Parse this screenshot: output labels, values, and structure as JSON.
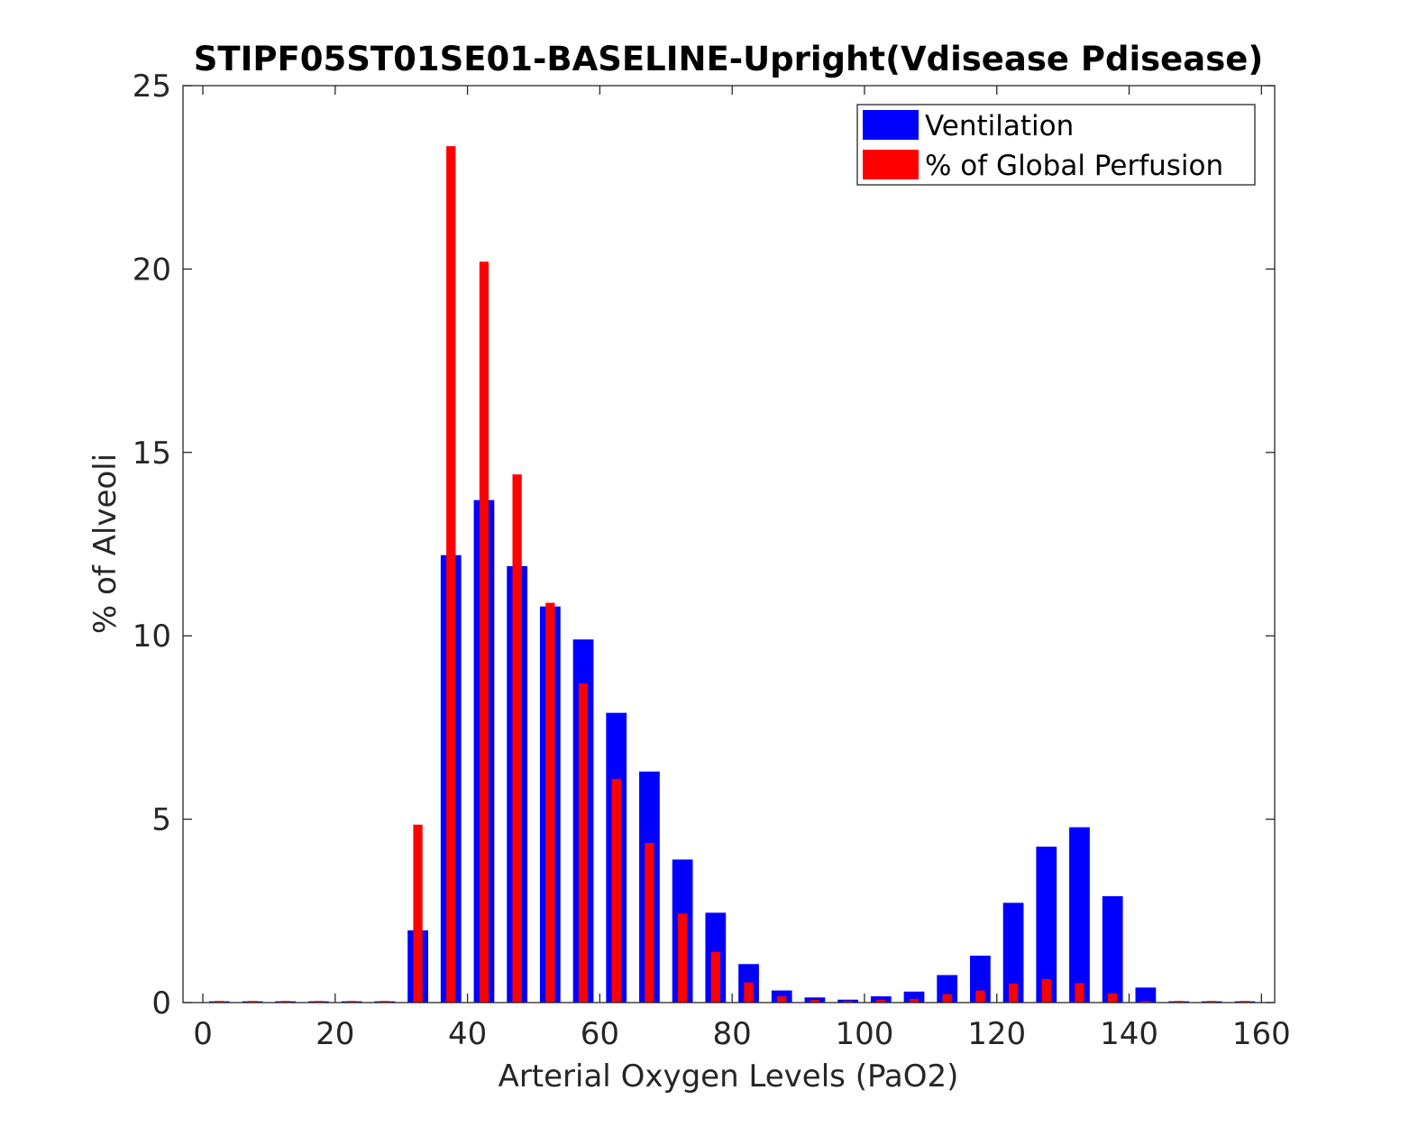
{
  "chart_data": {
    "type": "bar",
    "title": "STIPF05ST01SE01-BASELINE-Upright(Vdisease Pdisease)",
    "xlabel": "Arterial Oxygen Levels (PaO2)",
    "ylabel": "% of Alveoli",
    "xlim": [
      -3,
      162
    ],
    "ylim": [
      0,
      25
    ],
    "xticks": [
      0,
      20,
      40,
      60,
      80,
      100,
      120,
      140,
      160
    ],
    "yticks": [
      0,
      5,
      10,
      15,
      20,
      25
    ],
    "x": [
      2.5,
      7.5,
      12.5,
      17.5,
      22.5,
      27.5,
      32.5,
      37.5,
      42.5,
      47.5,
      52.5,
      57.5,
      62.5,
      67.5,
      72.5,
      77.5,
      82.5,
      87.5,
      92.5,
      97.5,
      102.5,
      107.5,
      112.5,
      117.5,
      122.5,
      127.5,
      132.5,
      137.5,
      142.5,
      147.5,
      152.5,
      157.5
    ],
    "series": [
      {
        "name": "Ventilation",
        "color": "#0000ff",
        "values": [
          0,
          0,
          0,
          0,
          0,
          0,
          1.97,
          12.2,
          13.7,
          11.9,
          10.8,
          9.9,
          7.9,
          6.3,
          3.9,
          2.45,
          1.05,
          0.33,
          0.14,
          0.08,
          0.17,
          0.3,
          0.75,
          1.28,
          2.72,
          4.25,
          4.78,
          2.9,
          0.41,
          0,
          0,
          0
        ]
      },
      {
        "name": "% of Global Perfusion",
        "color": "#ff0000",
        "values": [
          0,
          0,
          0,
          0,
          0,
          0,
          4.85,
          23.35,
          20.2,
          14.4,
          10.9,
          8.7,
          6.1,
          4.35,
          2.43,
          1.38,
          0.55,
          0.17,
          0.07,
          0.04,
          0.08,
          0.1,
          0.23,
          0.33,
          0.52,
          0.64,
          0.53,
          0.25,
          0.04,
          0,
          0,
          0
        ]
      }
    ],
    "legend_position": "top-right",
    "grid": false
  }
}
